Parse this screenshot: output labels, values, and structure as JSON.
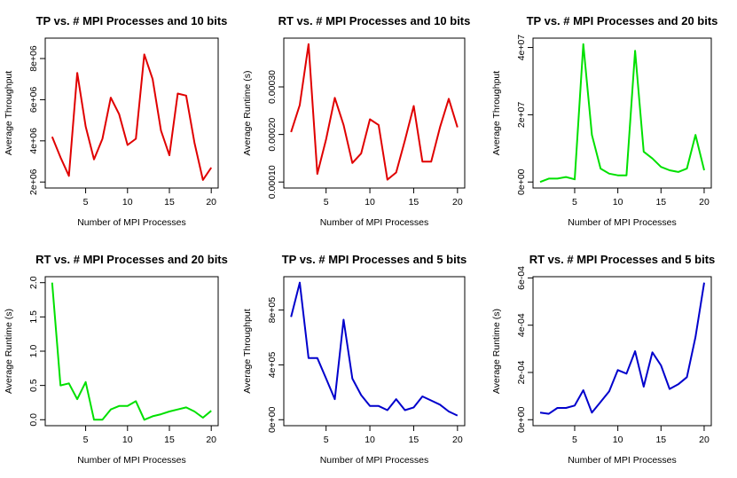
{
  "chart_data": [
    {
      "type": "line",
      "title": "TP vs. # MPI Processes and 10 bits",
      "xlabel": "Number of MPI Processes",
      "ylabel": "Average Throughput",
      "color": "#e00000",
      "x": [
        1,
        2,
        3,
        4,
        5,
        6,
        7,
        8,
        9,
        10,
        11,
        12,
        13,
        14,
        15,
        16,
        17,
        18,
        19,
        20
      ],
      "values": [
        4200000,
        3200000,
        2300000,
        7300000,
        4700000,
        3100000,
        4100000,
        6100000,
        5300000,
        3800000,
        4100000,
        8200000,
        7000000,
        4500000,
        3300000,
        6300000,
        6200000,
        3900000,
        2100000,
        2700000
      ],
      "xlim": [
        1,
        20
      ],
      "ylim": [
        2000000,
        8700000
      ],
      "yticks": [
        2000000,
        4000000,
        6000000,
        8000000
      ],
      "ytick_labels": [
        "2e+06",
        "4e+06",
        "6e+06",
        "8e+06"
      ],
      "xticks": [
        5,
        10,
        15,
        20
      ],
      "xtick_labels": [
        "5",
        "10",
        "15",
        "20"
      ]
    },
    {
      "type": "line",
      "title": "RT vs. # MPI Processes and 10 bits",
      "xlabel": "Number of MPI Processes",
      "ylabel": "Average Runtime (s)",
      "color": "#e00000",
      "x": [
        1,
        2,
        3,
        4,
        5,
        6,
        7,
        8,
        9,
        10,
        11,
        12,
        13,
        14,
        15,
        16,
        17,
        18,
        19,
        20
      ],
      "values": [
        0.000205,
        0.000262,
        0.00039,
        0.000117,
        0.00019,
        0.000277,
        0.00022,
        0.00014,
        0.00016,
        0.000232,
        0.00022,
        0.000105,
        0.00012,
        0.000188,
        0.00026,
        0.000143,
        0.000143,
        0.000215,
        0.000275,
        0.000215
      ],
      "xlim": [
        1,
        20
      ],
      "ylim": [
        0.0001,
        0.00039
      ],
      "yticks": [
        0.0001,
        0.0002,
        0.0003
      ],
      "ytick_labels": [
        "0.00010",
        "0.00020",
        "0.00030"
      ],
      "xticks": [
        5,
        10,
        15,
        20
      ],
      "xtick_labels": [
        "5",
        "10",
        "15",
        "20"
      ]
    },
    {
      "type": "line",
      "title": "TP vs. # MPI Processes and 20 bits",
      "xlabel": "Number of MPI Processes",
      "ylabel": "Average Throughput",
      "color": "#00e000",
      "x": [
        1,
        2,
        3,
        4,
        5,
        6,
        7,
        8,
        9,
        10,
        11,
        12,
        13,
        14,
        15,
        16,
        17,
        18,
        19,
        20
      ],
      "values": [
        0,
        1000000,
        1000000,
        1500000,
        800000,
        41000000,
        14000000,
        4000000,
        2500000,
        2000000,
        2000000,
        39000000,
        9000000,
        7000000,
        4500000,
        3500000,
        3000000,
        4000000,
        14000000,
        3500000
      ],
      "xlim": [
        1,
        20
      ],
      "ylim": [
        0,
        41000000
      ],
      "yticks": [
        0,
        20000000,
        40000000
      ],
      "ytick_labels": [
        "0e+00",
        "2e+07",
        "4e+07"
      ],
      "xticks": [
        5,
        10,
        15,
        20
      ],
      "xtick_labels": [
        "5",
        "10",
        "15",
        "20"
      ]
    },
    {
      "type": "line",
      "title": "RT vs. # MPI Processes and 20 bits",
      "xlabel": "Number of MPI Processes",
      "ylabel": "Average Runtime (s)",
      "color": "#00e000",
      "x": [
        1,
        2,
        3,
        4,
        5,
        6,
        7,
        8,
        9,
        10,
        11,
        12,
        13,
        14,
        15,
        16,
        17,
        18,
        19,
        20
      ],
      "values": [
        2.0,
        0.5,
        0.53,
        0.3,
        0.55,
        0.0,
        0.0,
        0.15,
        0.2,
        0.2,
        0.27,
        0.0,
        0.05,
        0.08,
        0.12,
        0.15,
        0.18,
        0.12,
        0.03,
        0.13
      ],
      "xlim": [
        1,
        20
      ],
      "ylim": [
        0,
        2.0
      ],
      "yticks": [
        0,
        0.5,
        1.0,
        1.5,
        2.0
      ],
      "ytick_labels": [
        "0.0",
        "0.5",
        "1.0",
        "1.5",
        "2.0"
      ],
      "xticks": [
        5,
        10,
        15,
        20
      ],
      "xtick_labels": [
        "5",
        "10",
        "15",
        "20"
      ]
    },
    {
      "type": "line",
      "title": "TP vs. # MPI Processes and 5 bits",
      "xlabel": "Number of MPI Processes",
      "ylabel": "Average Throughput",
      "color": "#0000cc",
      "x": [
        1,
        2,
        3,
        4,
        5,
        6,
        7,
        8,
        9,
        10,
        11,
        12,
        13,
        14,
        15,
        16,
        17,
        18,
        19,
        20
      ],
      "values": [
        750000,
        1000000,
        450000,
        450000,
        300000,
        150000,
        730000,
        300000,
        180000,
        100000,
        100000,
        70000,
        150000,
        70000,
        90000,
        170000,
        140000,
        110000,
        60000,
        30000
      ],
      "xlim": [
        1,
        20
      ],
      "ylim": [
        0,
        1000000
      ],
      "yticks": [
        0,
        400000,
        800000
      ],
      "ytick_labels": [
        "0e+00",
        "4e+05",
        "8e+05"
      ],
      "xticks": [
        5,
        10,
        15,
        20
      ],
      "xtick_labels": [
        "5",
        "10",
        "15",
        "20"
      ]
    },
    {
      "type": "line",
      "title": "RT vs. # MPI Processes and 5 bits",
      "xlabel": "Number of MPI Processes",
      "ylabel": "Average Runtime (s)",
      "color": "#0000cc",
      "x": [
        1,
        2,
        3,
        4,
        5,
        6,
        7,
        8,
        9,
        10,
        11,
        12,
        13,
        14,
        15,
        16,
        17,
        18,
        19,
        20
      ],
      "values": [
        3e-05,
        2.5e-05,
        5e-05,
        5e-05,
        6e-05,
        0.000125,
        3e-05,
        7.5e-05,
        0.00012,
        0.00021,
        0.000195,
        0.00029,
        0.00014,
        0.000285,
        0.00023,
        0.00013,
        0.00015,
        0.00018,
        0.00035,
        0.00058
      ],
      "xlim": [
        1,
        20
      ],
      "ylim": [
        0,
        0.00058
      ],
      "yticks": [
        0,
        0.0002,
        0.0004,
        0.0006
      ],
      "ytick_labels": [
        "0e+00",
        "2e-04",
        "4e-04",
        "6e-04"
      ],
      "xticks": [
        5,
        10,
        15,
        20
      ],
      "xtick_labels": [
        "5",
        "10",
        "15",
        "20"
      ]
    }
  ]
}
